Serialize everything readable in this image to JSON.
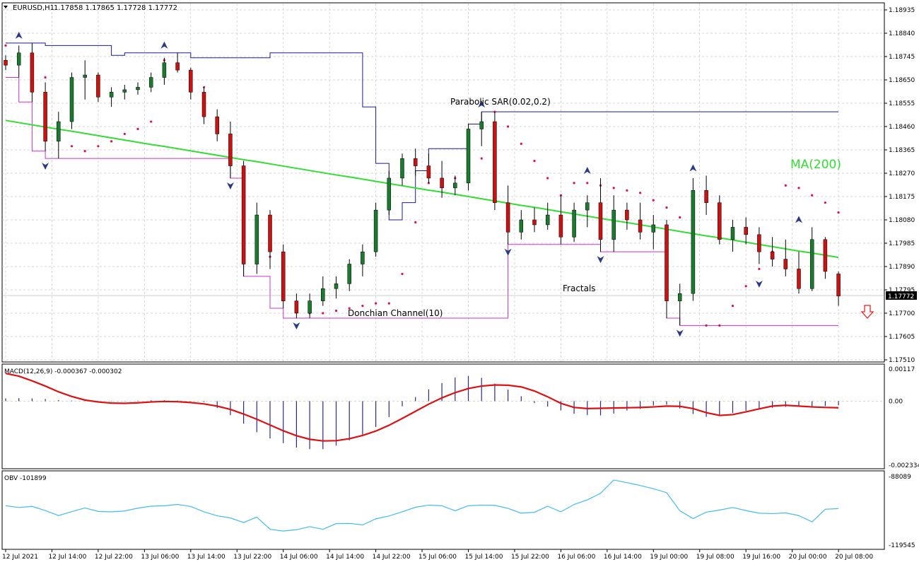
{
  "header": {
    "symbol": "EURUSD,H1",
    "ohlc": "1.17858 1.17865 1.17728 1.17772"
  },
  "price_panel": {
    "label_sar": "Parabolic SAR(0.02,0.2)",
    "label_ma": "MA(200)",
    "label_fractals": "Fractals",
    "label_donchian": "Donchian Channel(10)",
    "current_price": "1.17772",
    "y_ticks": [
      "1.18935",
      "1.18840",
      "1.18745",
      "1.18650",
      "1.18555",
      "1.18460",
      "1.18365",
      "1.18270",
      "1.18175",
      "1.18080",
      "1.17985",
      "1.17890",
      "1.17795",
      "1.17700",
      "1.17605",
      "1.17510"
    ]
  },
  "macd_panel": {
    "label": "MACD(12,26,9) -0.000367 -0.000302",
    "y_ticks": [
      "0.00117",
      "0.00",
      "-0.002334"
    ]
  },
  "obv_panel": {
    "label": "OBV -101899",
    "y_ticks": [
      "-88089",
      "-119545"
    ]
  },
  "x_axis": {
    "labels": [
      "12 Jul 2021",
      "12 Jul 14:00",
      "12 Jul 22:00",
      "13 Jul 06:00",
      "13 Jul 14:00",
      "13 Jul 22:00",
      "14 Jul 06:00",
      "14 Jul 14:00",
      "14 Jul 22:00",
      "15 Jul 06:00",
      "15 Jul 14:00",
      "15 Jul 22:00",
      "16 Jul 06:00",
      "16 Jul 14:00",
      "19 Jul 00:00",
      "19 Jul 08:00",
      "19 Jul 16:00",
      "20 Jul 00:00",
      "20 Jul 08:00"
    ]
  },
  "colors": {
    "bull": "#1a7a2e",
    "bear": "#cc1111",
    "ma": "#33dd33",
    "sar": "#dd1144",
    "donchian_upper": "#1a1a99",
    "donchian_lower": "#cc33cc",
    "fractal": "#2a3a88",
    "macd_hist": "#2a2a88",
    "macd_signal": "#dd1111",
    "obv": "#44bbee",
    "grid": "#c8c8c8"
  },
  "chart_data": {
    "type": "candlestick",
    "symbol": "EURUSD",
    "timeframe": "H1",
    "ylim": [
      1.1751,
      1.1899
    ],
    "candles": [
      [
        1.1873,
        1.1875,
        1.1869,
        1.1871
      ],
      [
        1.1871,
        1.1879,
        1.1866,
        1.1876
      ],
      [
        1.1876,
        1.188,
        1.1856,
        1.186
      ],
      [
        1.186,
        1.1864,
        1.1836,
        1.184
      ],
      [
        1.184,
        1.1852,
        1.1833,
        1.1848
      ],
      [
        1.1848,
        1.1868,
        1.1845,
        1.1866
      ],
      [
        1.1866,
        1.1873,
        1.1857,
        1.1867
      ],
      [
        1.1867,
        1.1868,
        1.1856,
        1.1858
      ],
      [
        1.1858,
        1.1862,
        1.1854,
        1.186
      ],
      [
        1.186,
        1.1863,
        1.1857,
        1.1861
      ],
      [
        1.1861,
        1.1864,
        1.1859,
        1.1862
      ],
      [
        1.1862,
        1.1868,
        1.186,
        1.1866
      ],
      [
        1.1866,
        1.1874,
        1.1863,
        1.1872
      ],
      [
        1.1872,
        1.1876,
        1.1868,
        1.1869
      ],
      [
        1.1869,
        1.187,
        1.1857,
        1.186
      ],
      [
        1.186,
        1.1862,
        1.1847,
        1.185
      ],
      [
        1.185,
        1.1853,
        1.184,
        1.1843
      ],
      [
        1.1843,
        1.1848,
        1.1825,
        1.183
      ],
      [
        1.183,
        1.1832,
        1.1785,
        1.179
      ],
      [
        1.179,
        1.1815,
        1.1786,
        1.181
      ],
      [
        1.181,
        1.1812,
        1.1788,
        1.1795
      ],
      [
        1.1795,
        1.1798,
        1.1772,
        1.1775
      ],
      [
        1.1775,
        1.1778,
        1.1768,
        1.177
      ],
      [
        1.177,
        1.1778,
        1.1768,
        1.1775
      ],
      [
        1.1775,
        1.1785,
        1.1773,
        1.178
      ],
      [
        1.178,
        1.1785,
        1.1776,
        1.1782
      ],
      [
        1.1782,
        1.1792,
        1.1779,
        1.179
      ],
      [
        1.179,
        1.1798,
        1.1785,
        1.1795
      ],
      [
        1.1795,
        1.1815,
        1.1793,
        1.1812
      ],
      [
        1.1812,
        1.1828,
        1.181,
        1.1825
      ],
      [
        1.1825,
        1.1835,
        1.1822,
        1.1833
      ],
      [
        1.1833,
        1.1837,
        1.1826,
        1.183
      ],
      [
        1.183,
        1.1835,
        1.1823,
        1.1825
      ],
      [
        1.1825,
        1.1832,
        1.1817,
        1.1821
      ],
      [
        1.1821,
        1.1826,
        1.1818,
        1.1823
      ],
      [
        1.1823,
        1.1847,
        1.182,
        1.1845
      ],
      [
        1.1845,
        1.1852,
        1.1838,
        1.1848
      ],
      [
        1.1848,
        1.1852,
        1.1812,
        1.1815
      ],
      [
        1.1815,
        1.1822,
        1.1798,
        1.1803
      ],
      [
        1.1803,
        1.1812,
        1.18,
        1.1808
      ],
      [
        1.1808,
        1.1813,
        1.1803,
        1.1806
      ],
      [
        1.1806,
        1.1815,
        1.1804,
        1.181
      ],
      [
        1.181,
        1.1818,
        1.1798,
        1.1801
      ],
      [
        1.1801,
        1.1815,
        1.1799,
        1.1812
      ],
      [
        1.1812,
        1.1818,
        1.1805,
        1.1815
      ],
      [
        1.1815,
        1.1825,
        1.1795,
        1.18
      ],
      [
        1.18,
        1.1818,
        1.1795,
        1.1812
      ],
      [
        1.1812,
        1.1815,
        1.1804,
        1.1808
      ],
      [
        1.1808,
        1.1815,
        1.18,
        1.1803
      ],
      [
        1.1803,
        1.181,
        1.1796,
        1.1806
      ],
      [
        1.1806,
        1.1808,
        1.1768,
        1.1775
      ],
      [
        1.1775,
        1.1782,
        1.1765,
        1.1778
      ],
      [
        1.1778,
        1.1825,
        1.1775,
        1.182
      ],
      [
        1.182,
        1.1826,
        1.181,
        1.1815
      ],
      [
        1.1815,
        1.1818,
        1.1798,
        1.18
      ],
      [
        1.18,
        1.1808,
        1.1795,
        1.1805
      ],
      [
        1.1805,
        1.1809,
        1.1798,
        1.1802
      ],
      [
        1.1802,
        1.1805,
        1.179,
        1.1795
      ],
      [
        1.1795,
        1.1801,
        1.1789,
        1.1792
      ],
      [
        1.1792,
        1.18,
        1.1785,
        1.1788
      ],
      [
        1.1788,
        1.1795,
        1.1778,
        1.178
      ],
      [
        1.178,
        1.1805,
        1.1779,
        1.18
      ],
      [
        1.18,
        1.1801,
        1.1784,
        1.1787
      ],
      [
        1.1786,
        1.1787,
        1.1773,
        1.1777
      ]
    ],
    "ma200": [
      1.18485,
      1.18476,
      1.18467,
      1.18458,
      1.18449,
      1.18441,
      1.18432,
      1.18423,
      1.18414,
      1.18405,
      1.18396,
      1.18387,
      1.18379,
      1.1837,
      1.18361,
      1.18352,
      1.18343,
      1.18334,
      1.18325,
      1.18317,
      1.18308,
      1.18299,
      1.1829,
      1.18281,
      1.18272,
      1.18263,
      1.18255,
      1.18246,
      1.18237,
      1.18228,
      1.18219,
      1.1821,
      1.18201,
      1.18193,
      1.18184,
      1.18175,
      1.18166,
      1.18157,
      1.18148,
      1.18139,
      1.18131,
      1.18122,
      1.18113,
      1.18104,
      1.18095,
      1.18086,
      1.18077,
      1.18069,
      1.1806,
      1.18051,
      1.18042,
      1.18033,
      1.18024,
      1.18015,
      1.18007,
      1.17998,
      1.17989,
      1.1798,
      1.17971,
      1.17962,
      1.17953,
      1.17945,
      1.17936,
      1.17927
    ],
    "macd_hist": [
      0.0001,
      0.00011,
      0.0001,
      8e-05,
      4e-05,
      2e-05,
      1e-05,
      1e-05,
      1e-05,
      1e-05,
      2e-05,
      3e-05,
      3e-05,
      2e-05,
      1e-05,
      -3e-05,
      -0.00025,
      -0.00051,
      -0.00082,
      -0.00113,
      -0.00136,
      -0.00153,
      -0.00169,
      -0.00175,
      -0.00175,
      -0.00162,
      -0.00143,
      -0.00122,
      -0.00094,
      -0.00058,
      -0.00019,
      0.00015,
      0.00043,
      0.00066,
      0.00086,
      0.00092,
      0.00085,
      0.00064,
      0.00042,
      0.00018,
      -7e-05,
      -0.0002,
      -0.00034,
      -0.00046,
      -0.00051,
      -0.00052,
      -0.00045,
      -0.00034,
      -0.00028,
      -0.00016,
      -0.00013,
      -0.00027,
      -0.00047,
      -0.00057,
      -0.00054,
      -0.00043,
      -0.00035,
      -0.00028,
      -0.00024,
      -0.00021,
      -0.0002,
      -0.0002,
      -0.00018,
      -0.00015
    ],
    "macd_signal": [
      0.00101,
      0.00091,
      0.00074,
      0.00055,
      0.00034,
      0.00017,
      4e-05,
      -3e-05,
      -7e-05,
      -8e-05,
      -6e-05,
      -3e-05,
      -1e-05,
      -2e-05,
      -5e-05,
      -0.0001,
      -0.00018,
      -0.0003,
      -0.00047,
      -0.00066,
      -0.00087,
      -0.00108,
      -0.00126,
      -0.00139,
      -0.00145,
      -0.00144,
      -0.00137,
      -0.00125,
      -0.00109,
      -0.00088,
      -0.00063,
      -0.00037,
      -0.00011,
      0.00012,
      0.00031,
      0.00046,
      0.00055,
      0.00059,
      0.00058,
      0.00052,
      0.00037,
      0.00016,
      -8e-05,
      -0.00023,
      -0.00027,
      -0.00026,
      -0.00025,
      -0.00024,
      -0.00023,
      -0.00021,
      -0.00018,
      -0.00019,
      -0.00027,
      -0.00042,
      -0.00052,
      -0.00049,
      -0.00039,
      -0.00028,
      -0.00018,
      -0.00015,
      -0.00018,
      -0.00021,
      -0.00023,
      -0.00024
    ],
    "obv": [
      -101500,
      -102300,
      -101800,
      -103700,
      -106000,
      -104200,
      -102500,
      -104100,
      -104300,
      -103900,
      -102600,
      -101700,
      -101500,
      -100900,
      -101800,
      -104300,
      -106100,
      -107100,
      -109200,
      -106700,
      -112300,
      -113100,
      -112500,
      -111100,
      -112300,
      -109700,
      -109600,
      -110300,
      -107500,
      -106200,
      -104300,
      -102200,
      -101200,
      -101500,
      -103800,
      -101500,
      -101200,
      -101300,
      -102700,
      -104900,
      -104500,
      -101700,
      -104300,
      -100900,
      -98800,
      -95800,
      -89700,
      -90900,
      -92200,
      -93700,
      -95500,
      -103800,
      -107400,
      -104400,
      -103500,
      -102300,
      -103700,
      -104900,
      -105100,
      -104800,
      -106000,
      -108900,
      -103100,
      -102800
    ],
    "sar": [
      1.1879,
      1.1874,
      1.1869,
      1.1866,
      1.1843,
      1.1838,
      1.1836,
      1.1838,
      1.184,
      1.1843,
      1.1845,
      1.1848,
      1.1873,
      1.1871,
      1.1867,
      1.1862,
      1.1848,
      1.1834,
      1.1819,
      1.1805,
      1.1793,
      1.1782,
      1.1772,
      1.177,
      1.177,
      1.1771,
      1.1772,
      1.1773,
      1.1774,
      1.1774,
      1.1786,
      1.1807,
      1.1823,
      1.1824,
      1.1825,
      1.1827,
      1.1833,
      1.1852,
      1.1846,
      1.1839,
      1.1832,
      1.1825,
      1.1818,
      1.1823,
      1.1823,
      1.1822,
      1.1821,
      1.182,
      1.1819,
      1.1816,
      1.1813,
      1.1809,
      1.1805,
      1.1765,
      1.1765,
      1.1773,
      1.1781,
      1.1788,
      1.1795,
      1.1822,
      1.1821,
      1.1818,
      1.1815,
      1.1811
    ],
    "donchian_upper": [
      1.188,
      1.188,
      1.188,
      1.1879,
      1.1879,
      1.1879,
      1.1879,
      1.1879,
      1.1875,
      1.1876,
      1.1876,
      1.1876,
      1.1876,
      1.1876,
      1.1874,
      1.1874,
      1.1874,
      1.1874,
      1.1874,
      1.1874,
      1.1876,
      1.1876,
      1.1876,
      1.1876,
      1.1876,
      1.1876,
      1.1876,
      1.1854,
      1.1831,
      1.1808,
      1.1815,
      1.1828,
      1.1837,
      1.1837,
      1.1837,
      1.1847,
      1.1852,
      1.1852,
      1.1852,
      1.1852,
      1.1852,
      1.1852,
      1.1852,
      1.1852,
      1.1852,
      1.1852,
      1.1852,
      1.1852,
      1.1852,
      1.1852,
      1.1852,
      1.1852,
      1.1852,
      1.1852,
      1.1852,
      1.1852,
      1.1852,
      1.1852,
      1.1852,
      1.1852,
      1.1852,
      1.1852,
      1.1852,
      1.1852
    ],
    "donchian_lower": [
      1.1866,
      1.1856,
      1.1836,
      1.1833,
      1.1833,
      1.1833,
      1.1833,
      1.1833,
      1.1833,
      1.1833,
      1.1833,
      1.1833,
      1.1833,
      1.1833,
      1.1833,
      1.1833,
      1.1833,
      1.1825,
      1.1785,
      1.1785,
      1.1772,
      1.1768,
      1.1768,
      1.1768,
      1.1768,
      1.1768,
      1.1768,
      1.1768,
      1.1768,
      1.1768,
      1.1768,
      1.1768,
      1.1768,
      1.1768,
      1.1768,
      1.1768,
      1.1768,
      1.1768,
      1.1798,
      1.1798,
      1.1798,
      1.1798,
      1.1798,
      1.1798,
      1.1798,
      1.1795,
      1.1795,
      1.1795,
      1.1795,
      1.1795,
      1.1768,
      1.1765,
      1.1765,
      1.1765,
      1.1765,
      1.1765,
      1.1765,
      1.1765,
      1.1765,
      1.1765,
      1.1765,
      1.1765,
      1.1765,
      1.1765
    ],
    "fractals_up": [
      [
        1,
        1.188
      ],
      [
        12,
        1.1876
      ],
      [
        36,
        1.1852
      ],
      [
        44,
        1.1825
      ],
      [
        52,
        1.1826
      ],
      [
        60,
        1.1805
      ]
    ],
    "fractals_down": [
      [
        3,
        1.1833
      ],
      [
        17,
        1.1825
      ],
      [
        22,
        1.1768
      ],
      [
        38,
        1.1798
      ],
      [
        45,
        1.1795
      ],
      [
        51,
        1.1765
      ],
      [
        57,
        1.1785
      ]
    ]
  }
}
